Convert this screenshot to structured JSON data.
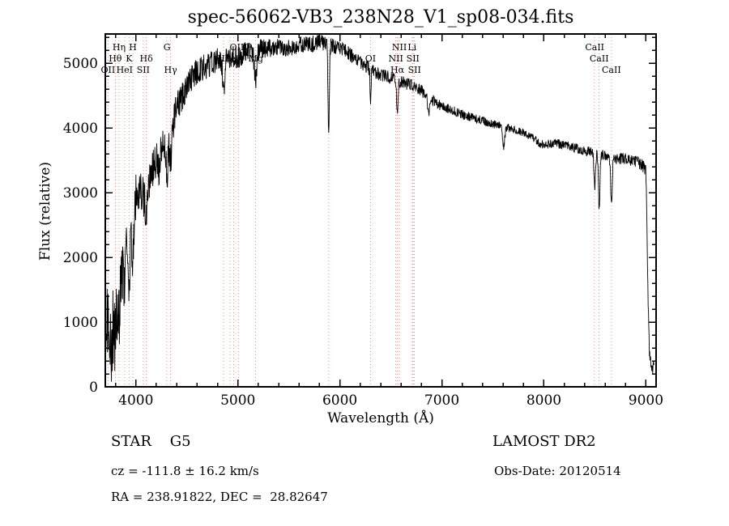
{
  "chart_data": {
    "type": "line",
    "title": "spec-56062-VB3_238N28_V1_sp08-034.fits",
    "xlabel": "Wavelength (Å)",
    "ylabel": "Flux (relative)",
    "xlim": [
      3700,
      9100
    ],
    "ylim": [
      0,
      5450
    ],
    "x_ticks": [
      4000,
      5000,
      6000,
      7000,
      8000,
      9000
    ],
    "y_ticks": [
      0,
      1000,
      2000,
      3000,
      4000,
      5000
    ],
    "x_minor_step": 200,
    "y_minor_step": 200,
    "x_range": [
      3700,
      9080
    ],
    "sample_step": 3,
    "noise_seed": 20120514,
    "grid": false,
    "line_color": "#000000",
    "ref_line_color": "#c89f9f",
    "spectral_lines": [
      {
        "label": "OII",
        "wl": 3727,
        "row": 3
      },
      {
        "label": "Hθ",
        "wl": 3798,
        "row": 2
      },
      {
        "label": "Hη",
        "wl": 3835,
        "row": 1
      },
      {
        "label": "HeI",
        "wl": 3889,
        "row": 3
      },
      {
        "label": "K",
        "wl": 3933,
        "row": 2
      },
      {
        "label": "H",
        "wl": 3970,
        "row": 1
      },
      {
        "label": "SII",
        "wl": 4072,
        "row": 3
      },
      {
        "label": "Hδ",
        "wl": 4102,
        "row": 2
      },
      {
        "label": "G",
        "wl": 4305,
        "row": 1
      },
      {
        "label": "Hγ",
        "wl": 4340,
        "row": 3
      },
      {
        "label": "Hβ",
        "wl": 4861,
        "row": 2
      },
      {
        "label": "Fe",
        "wl": 4924,
        "row": 2
      },
      {
        "label": "",
        "wl": 4959,
        "row": 1
      },
      {
        "label": "OIII",
        "wl": 5007,
        "row": 1
      },
      {
        "label": "Mg",
        "wl": 5175,
        "row": 2
      },
      {
        "label": "",
        "wl": 5890,
        "row": 2
      },
      {
        "label": "OI",
        "wl": 6300,
        "row": 2
      },
      {
        "label": "NII",
        "wl": 6548,
        "row": 2
      },
      {
        "label": "Hα",
        "wl": 6563,
        "row": 3
      },
      {
        "label": "NII",
        "wl": 6583,
        "row": 1
      },
      {
        "label": "Li",
        "wl": 6708,
        "row": 1
      },
      {
        "label": "SII",
        "wl": 6716,
        "row": 2
      },
      {
        "label": "SII",
        "wl": 6731,
        "row": 3
      },
      {
        "label": "CaII",
        "wl": 8498,
        "row": 1
      },
      {
        "label": "CaII",
        "wl": 8542,
        "row": 2
      },
      {
        "label": "CaII",
        "wl": 8662,
        "row": 3
      }
    ],
    "envelope": [
      [
        3700,
        950
      ],
      [
        3730,
        1000
      ],
      [
        3760,
        900
      ],
      [
        3800,
        1100
      ],
      [
        3840,
        1500
      ],
      [
        3880,
        1900
      ],
      [
        3920,
        2400
      ],
      [
        3960,
        2600
      ],
      [
        4000,
        2950
      ],
      [
        4040,
        3050
      ],
      [
        4080,
        2950
      ],
      [
        4120,
        3050
      ],
      [
        4160,
        3350
      ],
      [
        4200,
        3500
      ],
      [
        4240,
        3650
      ],
      [
        4280,
        3750
      ],
      [
        4320,
        3850
      ],
      [
        4360,
        4050
      ],
      [
        4400,
        4300
      ],
      [
        4450,
        4500
      ],
      [
        4500,
        4650
      ],
      [
        4550,
        4780
      ],
      [
        4600,
        4870
      ],
      [
        4650,
        4930
      ],
      [
        4700,
        4960
      ],
      [
        4750,
        5000
      ],
      [
        4800,
        5050
      ],
      [
        4850,
        5020
      ],
      [
        4900,
        5060
      ],
      [
        4950,
        5100
      ],
      [
        5000,
        5080
      ],
      [
        5050,
        5150
      ],
      [
        5100,
        5180
      ],
      [
        5150,
        5160
      ],
      [
        5200,
        5220
      ],
      [
        5300,
        5230
      ],
      [
        5400,
        5240
      ],
      [
        5500,
        5230
      ],
      [
        5600,
        5280
      ],
      [
        5700,
        5290
      ],
      [
        5800,
        5320
      ],
      [
        5900,
        5290
      ],
      [
        6000,
        5230
      ],
      [
        6100,
        5130
      ],
      [
        6200,
        5020
      ],
      [
        6300,
        4900
      ],
      [
        6400,
        4820
      ],
      [
        6500,
        4770
      ],
      [
        6600,
        4710
      ],
      [
        6700,
        4660
      ],
      [
        6800,
        4570
      ],
      [
        6900,
        4440
      ],
      [
        7000,
        4330
      ],
      [
        7100,
        4270
      ],
      [
        7200,
        4210
      ],
      [
        7300,
        4160
      ],
      [
        7400,
        4110
      ],
      [
        7500,
        4060
      ],
      [
        7600,
        4020
      ],
      [
        7700,
        3970
      ],
      [
        7800,
        3930
      ],
      [
        7900,
        3840
      ],
      [
        7950,
        3770
      ],
      [
        8000,
        3730
      ],
      [
        8100,
        3770
      ],
      [
        8200,
        3730
      ],
      [
        8300,
        3690
      ],
      [
        8400,
        3650
      ],
      [
        8500,
        3610
      ],
      [
        8600,
        3560
      ],
      [
        8700,
        3510
      ],
      [
        8800,
        3530
      ],
      [
        8900,
        3480
      ],
      [
        8960,
        3430
      ],
      [
        9000,
        3350
      ],
      [
        9010,
        2600
      ],
      [
        9020,
        1400
      ],
      [
        9035,
        500
      ],
      [
        9060,
        320
      ],
      [
        9080,
        300
      ]
    ],
    "noise_amp": [
      [
        3700,
        550
      ],
      [
        3780,
        600
      ],
      [
        3850,
        480
      ],
      [
        3900,
        420
      ],
      [
        3950,
        380
      ],
      [
        4000,
        340
      ],
      [
        4100,
        320
      ],
      [
        4200,
        300
      ],
      [
        4300,
        280
      ],
      [
        4400,
        260
      ],
      [
        4500,
        230
      ],
      [
        4600,
        210
      ],
      [
        4800,
        190
      ],
      [
        5000,
        170
      ],
      [
        5200,
        150
      ],
      [
        5400,
        140
      ],
      [
        5600,
        130
      ],
      [
        5800,
        125
      ],
      [
        6000,
        120
      ],
      [
        6200,
        110
      ],
      [
        6400,
        100
      ],
      [
        6600,
        95
      ],
      [
        6800,
        90
      ],
      [
        7000,
        80
      ],
      [
        7200,
        72
      ],
      [
        7400,
        68
      ],
      [
        7600,
        62
      ],
      [
        7800,
        60
      ],
      [
        8000,
        68
      ],
      [
        8200,
        72
      ],
      [
        8400,
        76
      ],
      [
        8600,
        80
      ],
      [
        8800,
        88
      ],
      [
        9000,
        95
      ],
      [
        9080,
        110
      ]
    ],
    "absorption_features": [
      {
        "x": 3760,
        "depth": 450,
        "width": 7
      },
      {
        "x": 3798,
        "depth": 350,
        "width": 8
      },
      {
        "x": 3835,
        "depth": 350,
        "width": 8
      },
      {
        "x": 3889,
        "depth": 350,
        "width": 8
      },
      {
        "x": 3933,
        "depth": 800,
        "width": 10
      },
      {
        "x": 3970,
        "depth": 700,
        "width": 10
      },
      {
        "x": 4102,
        "depth": 500,
        "width": 9
      },
      {
        "x": 4227,
        "depth": 300,
        "width": 6
      },
      {
        "x": 4305,
        "depth": 500,
        "width": 12
      },
      {
        "x": 4340,
        "depth": 450,
        "width": 8
      },
      {
        "x": 4861,
        "depth": 500,
        "width": 9
      },
      {
        "x": 5175,
        "depth": 450,
        "width": 12
      },
      {
        "x": 5890,
        "depth": 1300,
        "width": 7
      },
      {
        "x": 6300,
        "depth": 450,
        "width": 5
      },
      {
        "x": 6563,
        "depth": 450,
        "width": 7
      },
      {
        "x": 6870,
        "depth": 280,
        "width": 9
      },
      {
        "x": 7605,
        "depth": 300,
        "width": 11
      },
      {
        "x": 8498,
        "depth": 550,
        "width": 7
      },
      {
        "x": 8542,
        "depth": 850,
        "width": 7
      },
      {
        "x": 8662,
        "depth": 750,
        "width": 7
      }
    ]
  },
  "annotations": {
    "class_label": "STAR    G5",
    "survey": "LAMOST DR2",
    "cz": "cz = -111.8 ± 16.2 km/s",
    "obs_date": "Obs-Date: 20120514",
    "coords": "RA = 238.91822, DEC =  28.82647"
  }
}
